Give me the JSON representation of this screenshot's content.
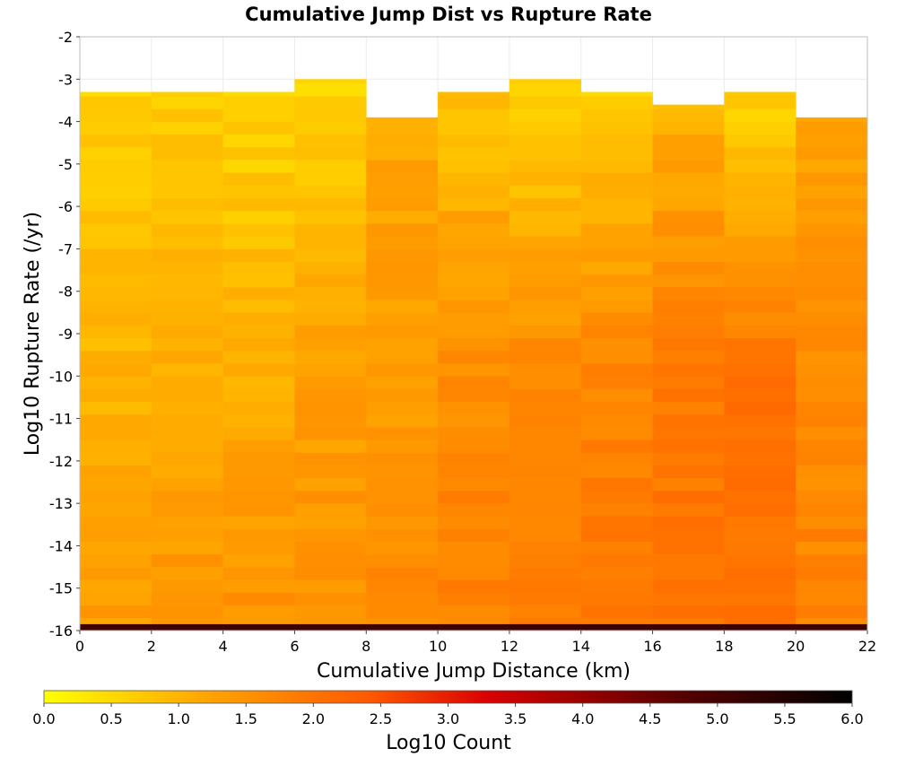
{
  "chart_data": {
    "type": "heatmap",
    "title": "Cumulative Jump Dist vs Rupture Rate",
    "xlabel": "Cumulative Jump Distance (km)",
    "ylabel": "Log10 Rupture Rate (/yr)",
    "colorbar_label": "Log10 Count",
    "xlim": [
      0,
      22
    ],
    "ylim": [
      -16,
      -2
    ],
    "x_ticks": [
      "0",
      "2",
      "4",
      "6",
      "8",
      "10",
      "12",
      "14",
      "16",
      "18",
      "20",
      "22"
    ],
    "y_ticks": [
      "-2",
      "-3",
      "-4",
      "-5",
      "-6",
      "-7",
      "-8",
      "-9",
      "-10",
      "-11",
      "-12",
      "-13",
      "-14",
      "-15",
      "-16"
    ],
    "colorbar_ticks": [
      "0.0",
      "0.5",
      "1.0",
      "1.5",
      "2.0",
      "2.5",
      "3.0",
      "3.5",
      "4.0",
      "4.5",
      "5.0",
      "5.5",
      "6.0"
    ],
    "colorbar_range": [
      0,
      6
    ],
    "colorscale": [
      "#ffff00",
      "#ffa500",
      "#ff5a00",
      "#d90000",
      "#5a0000",
      "#000000"
    ],
    "grid": true,
    "x_bin_edges": [
      0,
      2,
      4,
      6,
      8,
      10,
      12,
      14,
      16,
      18,
      20,
      22
    ],
    "y_bin_width": 0.3,
    "y_bins_start": -16,
    "y_bins_end": -2.9,
    "column_top_log10_rate": [
      -3.3,
      -3.3,
      -3.3,
      -3.0,
      -3.9,
      -3.3,
      -3.0,
      -3.3,
      -3.6,
      -3.3,
      -3.9
    ],
    "empty_cells": [
      {
        "x_bin": 6,
        "y_from": -3.6,
        "y_to": -3.3
      }
    ],
    "column_profiles": [
      {
        "x_range": [
          0,
          2
        ],
        "log10_count_top": 0.6,
        "log10_count_mid": 1.0,
        "log10_count_bottom": 1.35
      },
      {
        "x_range": [
          2,
          4
        ],
        "log10_count_top": 0.7,
        "log10_count_mid": 1.05,
        "log10_count_bottom": 1.5
      },
      {
        "x_range": [
          4,
          6
        ],
        "log10_count_top": 0.55,
        "log10_count_mid": 1.1,
        "log10_count_bottom": 1.5
      },
      {
        "x_range": [
          6,
          8
        ],
        "log10_count_top": 0.5,
        "log10_count_mid": 1.25,
        "log10_count_bottom": 1.55
      },
      {
        "x_range": [
          8,
          10
        ],
        "log10_count_top": 1.2,
        "log10_count_mid": 1.35,
        "log10_count_bottom": 1.65
      },
      {
        "x_range": [
          10,
          12
        ],
        "log10_count_top": 0.8,
        "log10_count_mid": 1.55,
        "log10_count_bottom": 1.8
      },
      {
        "x_range": [
          12,
          14
        ],
        "log10_count_top": 0.5,
        "log10_count_mid": 1.55,
        "log10_count_bottom": 1.8
      },
      {
        "x_range": [
          14,
          16
        ],
        "log10_count_top": 0.6,
        "log10_count_mid": 1.7,
        "log10_count_bottom": 1.95
      },
      {
        "x_range": [
          16,
          18
        ],
        "log10_count_top": 1.0,
        "log10_count_mid": 1.85,
        "log10_count_bottom": 2.05
      },
      {
        "x_range": [
          18,
          20
        ],
        "log10_count_top": 0.6,
        "log10_count_mid": 1.95,
        "log10_count_bottom": 2.1
      },
      {
        "x_range": [
          20,
          22
        ],
        "log10_count_top": 1.2,
        "log10_count_mid": 1.6,
        "log10_count_bottom": 1.75
      }
    ],
    "bottom_row": {
      "y_range": [
        -16,
        -15.85
      ],
      "log10_count": 5.1
    }
  }
}
